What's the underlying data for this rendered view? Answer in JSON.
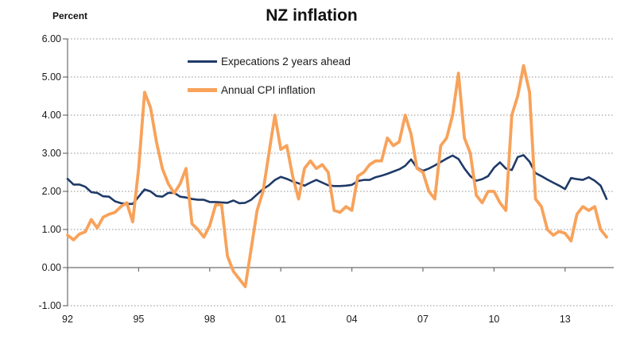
{
  "header": {
    "title": "NZ inflation",
    "unit_label": "Percent"
  },
  "chart_data": {
    "type": "line",
    "title": "NZ inflation",
    "ylabel": "Percent",
    "x_range": "1992Q1 to 2014Q4, quarterly",
    "x_tick_labels": [
      "92",
      "95",
      "98",
      "01",
      "04",
      "07",
      "10",
      "13"
    ],
    "y_ticks": [
      6,
      5,
      4,
      3,
      2,
      1,
      0,
      -1
    ],
    "y_tick_labels": [
      "6.00",
      "5.00",
      "4.00",
      "3.00",
      "2.00",
      "1.00",
      "0.00",
      "-1.00"
    ],
    "ylim": [
      -1,
      6
    ],
    "grid": "horizontal-dotted",
    "legend_position": "inside-top-center",
    "axis_color": "#6e6e6e",
    "gridline_color": "#8f8f8f",
    "text_color": "#1a1a1a",
    "series": [
      {
        "name": "Expecations 2 years ahead",
        "color": "#1f3a68",
        "stroke_width": 2.6,
        "values": [
          2.33,
          2.18,
          2.18,
          2.12,
          1.98,
          1.96,
          1.87,
          1.86,
          1.74,
          1.69,
          1.67,
          1.67,
          1.86,
          2.05,
          2.0,
          1.88,
          1.86,
          1.96,
          1.96,
          1.86,
          1.84,
          1.8,
          1.78,
          1.78,
          1.72,
          1.72,
          1.71,
          1.7,
          1.76,
          1.69,
          1.7,
          1.78,
          1.92,
          2.06,
          2.16,
          2.3,
          2.38,
          2.33,
          2.26,
          2.21,
          2.15,
          2.23,
          2.3,
          2.23,
          2.16,
          2.14,
          2.14,
          2.15,
          2.17,
          2.27,
          2.3,
          2.3,
          2.37,
          2.41,
          2.46,
          2.52,
          2.58,
          2.67,
          2.84,
          2.62,
          2.54,
          2.6,
          2.68,
          2.77,
          2.86,
          2.94,
          2.85,
          2.6,
          2.4,
          2.28,
          2.32,
          2.4,
          2.62,
          2.76,
          2.6,
          2.56,
          2.9,
          2.95,
          2.78,
          2.48,
          2.4,
          2.31,
          2.23,
          2.15,
          2.06,
          2.35,
          2.32,
          2.3,
          2.37,
          2.28,
          2.15,
          1.8
        ]
      },
      {
        "name": "Annual CPI inflation",
        "color": "#f8a25a",
        "stroke_width": 3.8,
        "values": [
          0.85,
          0.73,
          0.88,
          0.94,
          1.26,
          1.04,
          1.32,
          1.4,
          1.45,
          1.6,
          1.7,
          1.2,
          2.6,
          4.6,
          4.2,
          3.3,
          2.6,
          2.2,
          1.95,
          2.2,
          2.6,
          1.15,
          1.0,
          0.8,
          1.1,
          1.65,
          1.65,
          0.3,
          -0.1,
          -0.3,
          -0.5,
          0.5,
          1.5,
          2.0,
          3.0,
          4.0,
          3.1,
          3.2,
          2.4,
          1.8,
          2.6,
          2.8,
          2.6,
          2.7,
          2.5,
          1.5,
          1.45,
          1.6,
          1.5,
          2.4,
          2.5,
          2.7,
          2.8,
          2.8,
          3.4,
          3.2,
          3.3,
          4.0,
          3.5,
          2.6,
          2.5,
          2.0,
          1.8,
          3.2,
          3.4,
          4.0,
          5.1,
          3.4,
          3.0,
          1.9,
          1.7,
          2.0,
          2.0,
          1.7,
          1.5,
          4.0,
          4.5,
          5.3,
          4.6,
          1.8,
          1.6,
          1.0,
          0.85,
          0.95,
          0.9,
          0.7,
          1.4,
          1.6,
          1.5,
          1.6,
          1.0,
          0.8
        ]
      }
    ]
  }
}
